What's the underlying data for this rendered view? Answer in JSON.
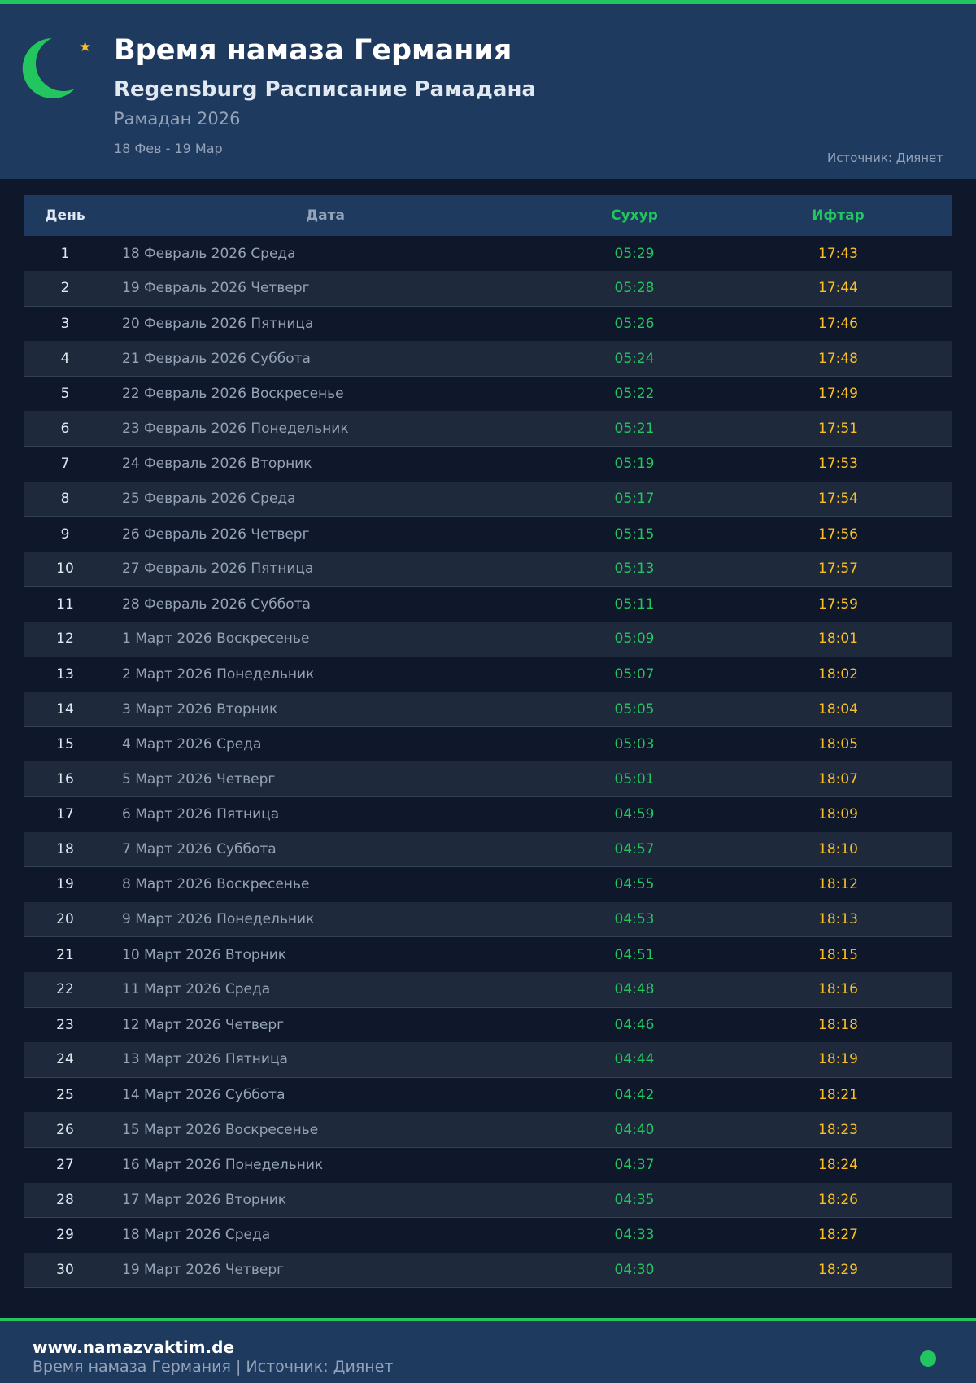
{
  "header": {
    "title": "Время намаза Германия",
    "subtitle": "Regensburg Расписание Рамадана",
    "season": "Рамадан 2026",
    "range": "18 Фев - 19 Мар",
    "source": "Источник: Диянет",
    "icons": [
      "crescent-moon-icon",
      "star-icon"
    ]
  },
  "colors": {
    "accent": "#22c55e",
    "iftar": "#fbbf24",
    "header_bg": "#1e3a5f",
    "page_bg": "#0f172a"
  },
  "table": {
    "columns": [
      "День",
      "Дата",
      "Сухур",
      "Ифтар"
    ],
    "rows": [
      [
        "1",
        "18 Февраль 2026 Среда",
        "05:29",
        "17:43"
      ],
      [
        "2",
        "19 Февраль 2026 Четверг",
        "05:28",
        "17:44"
      ],
      [
        "3",
        "20 Февраль 2026 Пятница",
        "05:26",
        "17:46"
      ],
      [
        "4",
        "21 Февраль 2026 Суббота",
        "05:24",
        "17:48"
      ],
      [
        "5",
        "22 Февраль 2026 Воскресенье",
        "05:22",
        "17:49"
      ],
      [
        "6",
        "23 Февраль 2026 Понедельник",
        "05:21",
        "17:51"
      ],
      [
        "7",
        "24 Февраль 2026 Вторник",
        "05:19",
        "17:53"
      ],
      [
        "8",
        "25 Февраль 2026 Среда",
        "05:17",
        "17:54"
      ],
      [
        "9",
        "26 Февраль 2026 Четверг",
        "05:15",
        "17:56"
      ],
      [
        "10",
        "27 Февраль 2026 Пятница",
        "05:13",
        "17:57"
      ],
      [
        "11",
        "28 Февраль 2026 Суббота",
        "05:11",
        "17:59"
      ],
      [
        "12",
        "1 Март 2026 Воскресенье",
        "05:09",
        "18:01"
      ],
      [
        "13",
        "2 Март 2026 Понедельник",
        "05:07",
        "18:02"
      ],
      [
        "14",
        "3 Март 2026 Вторник",
        "05:05",
        "18:04"
      ],
      [
        "15",
        "4 Март 2026 Среда",
        "05:03",
        "18:05"
      ],
      [
        "16",
        "5 Март 2026 Четверг",
        "05:01",
        "18:07"
      ],
      [
        "17",
        "6 Март 2026 Пятница",
        "04:59",
        "18:09"
      ],
      [
        "18",
        "7 Март 2026 Суббота",
        "04:57",
        "18:10"
      ],
      [
        "19",
        "8 Март 2026 Воскресенье",
        "04:55",
        "18:12"
      ],
      [
        "20",
        "9 Март 2026 Понедельник",
        "04:53",
        "18:13"
      ],
      [
        "21",
        "10 Март 2026 Вторник",
        "04:51",
        "18:15"
      ],
      [
        "22",
        "11 Март 2026 Среда",
        "04:48",
        "18:16"
      ],
      [
        "23",
        "12 Март 2026 Четверг",
        "04:46",
        "18:18"
      ],
      [
        "24",
        "13 Март 2026 Пятница",
        "04:44",
        "18:19"
      ],
      [
        "25",
        "14 Март 2026 Суббота",
        "04:42",
        "18:21"
      ],
      [
        "26",
        "15 Март 2026 Воскресенье",
        "04:40",
        "18:23"
      ],
      [
        "27",
        "16 Март 2026 Понедельник",
        "04:37",
        "18:24"
      ],
      [
        "28",
        "17 Март 2026 Вторник",
        "04:35",
        "18:26"
      ],
      [
        "29",
        "18 Март 2026 Среда",
        "04:33",
        "18:27"
      ],
      [
        "30",
        "19 Март 2026 Четверг",
        "04:30",
        "18:29"
      ]
    ]
  },
  "footer": {
    "url": "www.namazvaktim.de",
    "text": "Время намаза Германия | Источник: Диянет"
  }
}
